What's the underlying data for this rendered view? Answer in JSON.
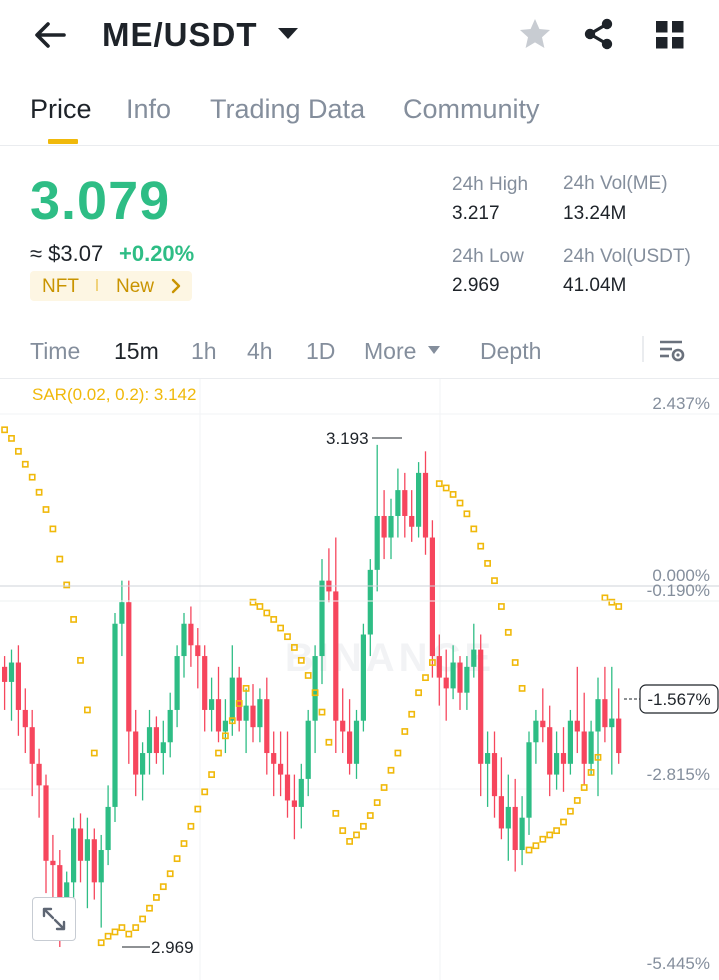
{
  "header": {
    "pair": "ME/USDT",
    "back_icon": "arrow-left-icon",
    "caret_icon": "caret-down-icon",
    "star_icon": "star-icon",
    "share_icon": "share-icon",
    "grid_icon": "grid-icon"
  },
  "tabs": [
    {
      "label": "Price",
      "active": true
    },
    {
      "label": "Info",
      "active": false
    },
    {
      "label": "Trading Data",
      "active": false
    },
    {
      "label": "Community",
      "active": false
    }
  ],
  "price": {
    "last": "3.079",
    "usd": "≈ $3.07",
    "change": "+0.20%",
    "tag_nft": "NFT",
    "tag_new": "New",
    "color_up": "#2ebd85",
    "color_down": "#f6465d",
    "accent": "#f0b90b"
  },
  "stats": {
    "high_label": "24h High",
    "high": "3.217",
    "low_label": "24h Low",
    "low": "2.969",
    "vol_base_label": "24h Vol(ME)",
    "vol_base": "13.24M",
    "vol_quote_label": "24h Vol(USDT)",
    "vol_quote": "41.04M"
  },
  "intervals": {
    "items": [
      "Time",
      "15m",
      "1h",
      "4h",
      "1D",
      "More",
      "Depth"
    ],
    "active": "15m",
    "settings_icon": "chart-settings-icon"
  },
  "chart": {
    "sar_label": "SAR(0.02, 0.2): 3.142",
    "right_axis_top": "2.437%",
    "right_axis_zero": "0.000%",
    "right_axis_b": "-0.190%",
    "current_pct": "-1.567%",
    "right_axis_c": "-2.815%",
    "right_axis_bottom": "-5.445%",
    "max_marker": "3.193",
    "min_marker": "2.969",
    "bg_watermark": "BINANCE",
    "expand_icon": "expand-icon"
  },
  "chart_data": {
    "type": "candlestick",
    "interval": "15m",
    "y_range": [
      2.94,
      3.23
    ],
    "candles": [
      [
        3.09,
        3.095,
        3.07,
        3.083
      ],
      [
        3.083,
        3.098,
        3.065,
        3.092
      ],
      [
        3.092,
        3.1,
        3.058,
        3.07
      ],
      [
        3.07,
        3.08,
        3.05,
        3.062
      ],
      [
        3.062,
        3.07,
        3.03,
        3.045
      ],
      [
        3.045,
        3.052,
        3.02,
        3.035
      ],
      [
        3.035,
        3.04,
        2.985,
        3.0
      ],
      [
        3.0,
        3.012,
        2.98,
        2.998
      ],
      [
        2.998,
        3.005,
        2.96,
        2.975
      ],
      [
        2.975,
        2.995,
        2.968,
        2.99
      ],
      [
        2.99,
        3.02,
        2.983,
        3.015
      ],
      [
        3.015,
        3.022,
        2.99,
        3.0
      ],
      [
        3.0,
        3.02,
        2.978,
        3.01
      ],
      [
        3.01,
        3.015,
        2.982,
        2.99
      ],
      [
        2.99,
        3.012,
        2.969,
        3.005
      ],
      [
        3.005,
        3.035,
        2.998,
        3.025
      ],
      [
        3.025,
        3.115,
        3.018,
        3.11
      ],
      [
        3.11,
        3.13,
        3.095,
        3.12
      ],
      [
        3.12,
        3.13,
        3.045,
        3.06
      ],
      [
        3.06,
        3.07,
        3.03,
        3.04
      ],
      [
        3.04,
        3.055,
        3.028,
        3.05
      ],
      [
        3.05,
        3.07,
        3.04,
        3.062
      ],
      [
        3.062,
        3.067,
        3.045,
        3.05
      ],
      [
        3.05,
        3.065,
        3.04,
        3.055
      ],
      [
        3.055,
        3.078,
        3.048,
        3.07
      ],
      [
        3.07,
        3.1,
        3.062,
        3.095
      ],
      [
        3.095,
        3.115,
        3.085,
        3.11
      ],
      [
        3.11,
        3.118,
        3.09,
        3.1
      ],
      [
        3.1,
        3.108,
        3.08,
        3.095
      ],
      [
        3.095,
        3.1,
        3.06,
        3.07
      ],
      [
        3.07,
        3.085,
        3.06,
        3.075
      ],
      [
        3.075,
        3.09,
        3.055,
        3.06
      ],
      [
        3.06,
        3.075,
        3.05,
        3.065
      ],
      [
        3.065,
        3.1,
        3.058,
        3.085
      ],
      [
        3.085,
        3.09,
        3.06,
        3.065
      ],
      [
        3.065,
        3.08,
        3.05,
        3.072
      ],
      [
        3.072,
        3.082,
        3.055,
        3.062
      ],
      [
        3.062,
        3.08,
        3.055,
        3.075
      ],
      [
        3.075,
        3.085,
        3.04,
        3.05
      ],
      [
        3.05,
        3.06,
        3.03,
        3.045
      ],
      [
        3.045,
        3.06,
        3.03,
        3.04
      ],
      [
        3.04,
        3.06,
        3.02,
        3.028
      ],
      [
        3.028,
        3.04,
        3.01,
        3.025
      ],
      [
        3.025,
        3.045,
        3.015,
        3.038
      ],
      [
        3.038,
        3.07,
        3.03,
        3.065
      ],
      [
        3.065,
        3.1,
        3.05,
        3.095
      ],
      [
        3.095,
        3.14,
        3.082,
        3.13
      ],
      [
        3.13,
        3.145,
        3.12,
        3.125
      ],
      [
        3.125,
        3.15,
        3.05,
        3.065
      ],
      [
        3.065,
        3.08,
        3.05,
        3.06
      ],
      [
        3.06,
        3.075,
        3.04,
        3.045
      ],
      [
        3.045,
        3.07,
        3.038,
        3.065
      ],
      [
        3.065,
        3.11,
        3.06,
        3.105
      ],
      [
        3.105,
        3.14,
        3.095,
        3.135
      ],
      [
        3.135,
        3.193,
        3.125,
        3.16
      ],
      [
        3.16,
        3.172,
        3.14,
        3.15
      ],
      [
        3.15,
        3.168,
        3.14,
        3.16
      ],
      [
        3.16,
        3.182,
        3.15,
        3.172
      ],
      [
        3.172,
        3.18,
        3.15,
        3.16
      ],
      [
        3.16,
        3.172,
        3.148,
        3.155
      ],
      [
        3.155,
        3.185,
        3.15,
        3.18
      ],
      [
        3.18,
        3.19,
        3.142,
        3.15
      ],
      [
        3.15,
        3.158,
        3.085,
        3.095
      ],
      [
        3.095,
        3.105,
        3.072,
        3.085
      ],
      [
        3.085,
        3.098,
        3.065,
        3.08
      ],
      [
        3.08,
        3.1,
        3.075,
        3.092
      ],
      [
        3.092,
        3.095,
        3.07,
        3.078
      ],
      [
        3.078,
        3.095,
        3.07,
        3.09
      ],
      [
        3.09,
        3.11,
        3.085,
        3.098
      ],
      [
        3.098,
        3.105,
        3.03,
        3.045
      ],
      [
        3.045,
        3.06,
        3.025,
        3.05
      ],
      [
        3.05,
        3.06,
        3.02,
        3.03
      ],
      [
        3.03,
        3.048,
        3.01,
        3.015
      ],
      [
        3.015,
        3.04,
        3.0,
        3.025
      ],
      [
        3.025,
        3.038,
        2.995,
        3.005
      ],
      [
        3.005,
        3.03,
        2.998,
        3.02
      ],
      [
        3.02,
        3.06,
        3.012,
        3.055
      ],
      [
        3.055,
        3.07,
        3.045,
        3.065
      ],
      [
        3.065,
        3.08,
        3.055,
        3.062
      ],
      [
        3.062,
        3.072,
        3.03,
        3.04
      ],
      [
        3.04,
        3.06,
        3.033,
        3.05
      ],
      [
        3.05,
        3.062,
        3.032,
        3.045
      ],
      [
        3.045,
        3.07,
        3.04,
        3.065
      ],
      [
        3.065,
        3.09,
        3.05,
        3.06
      ],
      [
        3.06,
        3.078,
        3.035,
        3.045
      ],
      [
        3.045,
        3.065,
        3.04,
        3.06
      ],
      [
        3.06,
        3.085,
        3.03,
        3.075
      ],
      [
        3.075,
        3.09,
        3.055,
        3.062
      ],
      [
        3.062,
        3.09,
        3.04,
        3.066
      ],
      [
        3.066,
        3.08,
        3.045,
        3.05
      ]
    ],
    "sar": [
      [
        0,
        3.2
      ],
      [
        1,
        3.196
      ],
      [
        2,
        3.19
      ],
      [
        3,
        3.184
      ],
      [
        4,
        3.178
      ],
      [
        5,
        3.171
      ],
      [
        6,
        3.163
      ],
      [
        7,
        3.154
      ],
      [
        8,
        3.14
      ],
      [
        9,
        3.128
      ],
      [
        10,
        3.112
      ],
      [
        11,
        3.093
      ],
      [
        12,
        3.07
      ],
      [
        13,
        3.05
      ],
      [
        14,
        2.962
      ],
      [
        15,
        2.965
      ],
      [
        16,
        2.967
      ],
      [
        17,
        2.969
      ],
      [
        18,
        2.966
      ],
      [
        19,
        2.969
      ],
      [
        20,
        2.973
      ],
      [
        21,
        2.978
      ],
      [
        22,
        2.983
      ],
      [
        23,
        2.988
      ],
      [
        24,
        2.994
      ],
      [
        25,
        3.001
      ],
      [
        26,
        3.008
      ],
      [
        27,
        3.016
      ],
      [
        28,
        3.024
      ],
      [
        29,
        3.032
      ],
      [
        30,
        3.04
      ],
      [
        31,
        3.05
      ],
      [
        32,
        3.058
      ],
      [
        33,
        3.065
      ],
      [
        34,
        3.073
      ],
      [
        35,
        3.08
      ],
      [
        36,
        3.12
      ],
      [
        37,
        3.118
      ],
      [
        38,
        3.115
      ],
      [
        39,
        3.112
      ],
      [
        40,
        3.108
      ],
      [
        41,
        3.104
      ],
      [
        42,
        3.099
      ],
      [
        43,
        3.093
      ],
      [
        44,
        3.086
      ],
      [
        45,
        3.078
      ],
      [
        46,
        3.069
      ],
      [
        47,
        3.055
      ],
      [
        48,
        3.022
      ],
      [
        49,
        3.014
      ],
      [
        50,
        3.009
      ],
      [
        51,
        3.012
      ],
      [
        52,
        3.016
      ],
      [
        53,
        3.021
      ],
      [
        54,
        3.027
      ],
      [
        55,
        3.034
      ],
      [
        56,
        3.042
      ],
      [
        57,
        3.05
      ],
      [
        58,
        3.06
      ],
      [
        59,
        3.068
      ],
      [
        60,
        3.078
      ],
      [
        61,
        3.085
      ],
      [
        62,
        3.092
      ],
      [
        63,
        3.175
      ],
      [
        64,
        3.173
      ],
      [
        65,
        3.17
      ],
      [
        66,
        3.166
      ],
      [
        67,
        3.161
      ],
      [
        68,
        3.154
      ],
      [
        69,
        3.146
      ],
      [
        70,
        3.138
      ],
      [
        71,
        3.13
      ],
      [
        72,
        3.118
      ],
      [
        73,
        3.106
      ],
      [
        74,
        3.092
      ],
      [
        75,
        3.08
      ],
      [
        76,
        3.005
      ],
      [
        77,
        3.007
      ],
      [
        78,
        3.01
      ],
      [
        79,
        3.012
      ],
      [
        80,
        3.014
      ],
      [
        81,
        3.018
      ],
      [
        82,
        3.023
      ],
      [
        83,
        3.028
      ],
      [
        84,
        3.034
      ],
      [
        85,
        3.041
      ],
      [
        86,
        3.048
      ],
      [
        87,
        3.122
      ],
      [
        88,
        3.12
      ],
      [
        89,
        3.118
      ]
    ]
  }
}
